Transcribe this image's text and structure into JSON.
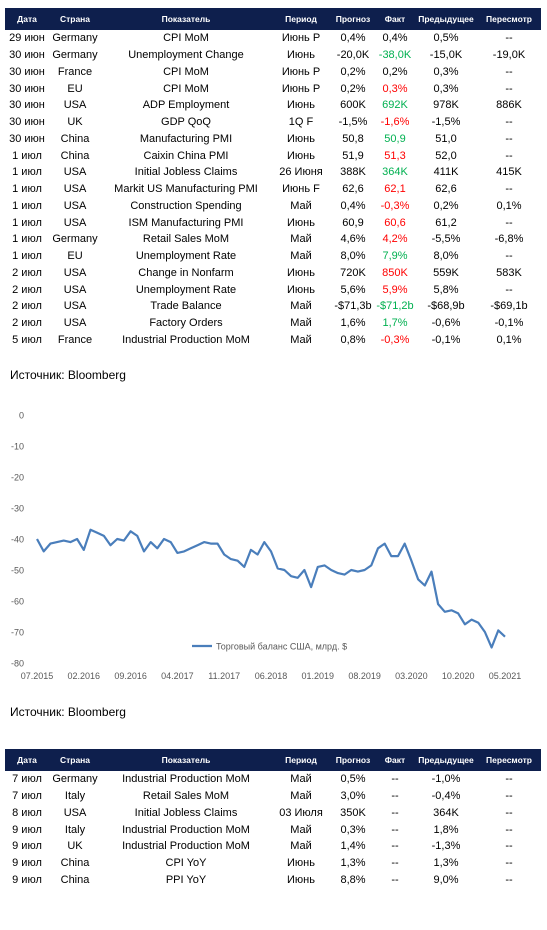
{
  "table1": {
    "header": [
      "Дата",
      "Страна",
      "Показатель",
      "Период",
      "Прогноз",
      "Факт",
      "Предыдущее",
      "Пересмотр"
    ],
    "rows": [
      [
        "29 июн",
        "Germany",
        "CPI MoM",
        "Июнь P",
        "0,4%",
        "0,4%",
        "0,5%",
        "--"
      ],
      [
        "30 июн",
        "Germany",
        "Unemployment Change",
        "Июнь",
        "-20,0K",
        "-38,0K",
        "-15,0K",
        "-19,0K"
      ],
      [
        "30 июн",
        "France",
        "CPI MoM",
        "Июнь P",
        "0,2%",
        "0,2%",
        "0,3%",
        "--"
      ],
      [
        "30 июн",
        "EU",
        "CPI MoM",
        "Июнь P",
        "0,2%",
        "0,3%",
        "0,3%",
        "--"
      ],
      [
        "30 июн",
        "USA",
        "ADP Employment",
        "Июнь",
        "600K",
        "692K",
        "978K",
        "886K"
      ],
      [
        "30 июн",
        "UK",
        "GDP QoQ",
        "1Q F",
        "-1,5%",
        "-1,6%",
        "-1,5%",
        "--"
      ],
      [
        "30 июн",
        "China",
        "Manufacturing PMI",
        "Июнь",
        "50,8",
        "50,9",
        "51,0",
        "--"
      ],
      [
        "1 июл",
        "China",
        "Caixin China PMI",
        "Июнь",
        "51,9",
        "51,3",
        "52,0",
        "--"
      ],
      [
        "1 июл",
        "USA",
        "Initial Jobless Claims",
        "26 Июня",
        "388K",
        "364K",
        "411K",
        "415K"
      ],
      [
        "1 июл",
        "USA",
        "Markit US Manufacturing PMI",
        "Июнь F",
        "62,6",
        "62,1",
        "62,6",
        "--"
      ],
      [
        "1 июл",
        "USA",
        "Construction Spending",
        "Май",
        "0,4%",
        "-0,3%",
        "0,2%",
        "0,1%"
      ],
      [
        "1 июл",
        "USA",
        "ISM Manufacturing PMI",
        "Июнь",
        "60,9",
        "60,6",
        "61,2",
        "--"
      ],
      [
        "1 июл",
        "Germany",
        "Retail Sales MoM",
        "Май",
        "4,6%",
        "4,2%",
        "-5,5%",
        "-6,8%"
      ],
      [
        "1 июл",
        "EU",
        "Unemployment Rate",
        "Май",
        "8,0%",
        "7,9%",
        "8,0%",
        "--"
      ],
      [
        "2 июл",
        "USA",
        "Change in Nonfarm",
        "Июнь",
        "720K",
        "850K",
        "559K",
        "583K"
      ],
      [
        "2 июл",
        "USA",
        "Unemployment Rate",
        "Июнь",
        "5,6%",
        "5,9%",
        "5,8%",
        "--"
      ],
      [
        "2 июл",
        "USA",
        "Trade Balance",
        "Май",
        "-$71,3b",
        "-$71,2b",
        "-$68,9b",
        "-$69,1b"
      ],
      [
        "2 июл",
        "USA",
        "Factory Orders",
        "Май",
        "1,6%",
        "1,7%",
        "-0,6%",
        "-0,1%"
      ],
      [
        "5 июл",
        "France",
        "Industrial Production MoM",
        "Май",
        "0,8%",
        "-0,3%",
        "-0,1%",
        "0,1%"
      ]
    ],
    "fact_colors": [
      "#000000",
      "#00b050",
      "#000000",
      "#ff0000",
      "#00b050",
      "#ff0000",
      "#00b050",
      "#ff0000",
      "#00b050",
      "#ff0000",
      "#ff0000",
      "#ff0000",
      "#ff0000",
      "#00b050",
      "#ff0000",
      "#ff0000",
      "#00b050",
      "#00b050",
      "#ff0000"
    ]
  },
  "source1": "Источник: Bloomberg",
  "chart_data": {
    "type": "line",
    "categories": [
      "07.2015",
      null,
      null,
      null,
      null,
      null,
      null,
      "02.2016",
      null,
      null,
      null,
      null,
      null,
      null,
      "09.2016",
      null,
      null,
      null,
      null,
      null,
      null,
      "04.2017",
      null,
      null,
      null,
      null,
      null,
      null,
      "11.2017",
      null,
      null,
      null,
      null,
      null,
      null,
      "06.2018",
      null,
      null,
      null,
      null,
      null,
      null,
      "01.2019",
      null,
      null,
      null,
      null,
      null,
      null,
      "08.2019",
      null,
      null,
      null,
      null,
      null,
      null,
      "03.2020",
      null,
      null,
      null,
      null,
      null,
      null,
      "10.2020",
      null,
      null,
      null,
      null,
      null,
      null,
      "05.2021"
    ],
    "series": [
      {
        "name": "Торговый баланс США, млрд. $",
        "color": "#4a7ebb",
        "values": [
          -40,
          -44,
          -41.5,
          -41,
          -40.5,
          -41,
          -40,
          -43.5,
          -37,
          -38,
          -39,
          -42,
          -40,
          -40.5,
          -37.5,
          -39,
          -44,
          -41,
          -43,
          -40,
          -41,
          -44.5,
          -44,
          -43,
          -42,
          -41,
          -41.5,
          -41.5,
          -45,
          -46.5,
          -47,
          -49,
          -43.5,
          -45,
          -41,
          -44,
          -49.5,
          -50,
          -52,
          -52.5,
          -50,
          -55.5,
          -49,
          -48.5,
          -50,
          -51,
          -51.5,
          -50,
          -50.5,
          -50,
          -48.5,
          -43,
          -41.5,
          -45.5,
          -45.5,
          -41.5,
          -47,
          -53,
          -55,
          -50.5,
          -61,
          -63.5,
          -63,
          -64,
          -67.5,
          -66,
          -67,
          -70,
          -75,
          -69.5,
          -71.5
        ]
      }
    ],
    "ylim": [
      -80,
      0
    ],
    "yticks": [
      0,
      -10,
      -20,
      -30,
      -40,
      -50,
      -60,
      -70,
      -80
    ],
    "grid": false,
    "legend": "bottom"
  },
  "source2": "Источник: Bloomberg",
  "table2": {
    "header": [
      "Дата",
      "Страна",
      "Показатель",
      "Период",
      "Прогноз",
      "Факт",
      "Предыдущее",
      "Пересмотр"
    ],
    "rows": [
      [
        "7 июл",
        "Germany",
        "Industrial Production MoM",
        "Май",
        "0,5%",
        "--",
        "-1,0%",
        "--"
      ],
      [
        "7 июл",
        "Italy",
        "Retail Sales MoM",
        "Май",
        "3,0%",
        "--",
        "-0,4%",
        "--"
      ],
      [
        "8 июл",
        "USA",
        "Initial Jobless Claims",
        "03 Июля",
        "350K",
        "--",
        "364K",
        "--"
      ],
      [
        "9 июл",
        "Italy",
        "Industrial Production MoM",
        "Май",
        "0,3%",
        "--",
        "1,8%",
        "--"
      ],
      [
        "9 июл",
        "UK",
        "Industrial Production MoM",
        "Май",
        "1,4%",
        "--",
        "-1,3%",
        "--"
      ],
      [
        "9 июл",
        "China",
        "CPI YoY",
        "Июнь",
        "1,3%",
        "--",
        "1,3%",
        "--"
      ],
      [
        "9 июл",
        "China",
        "PPI YoY",
        "Июнь",
        "8,8%",
        "--",
        "9,0%",
        "--"
      ]
    ]
  }
}
